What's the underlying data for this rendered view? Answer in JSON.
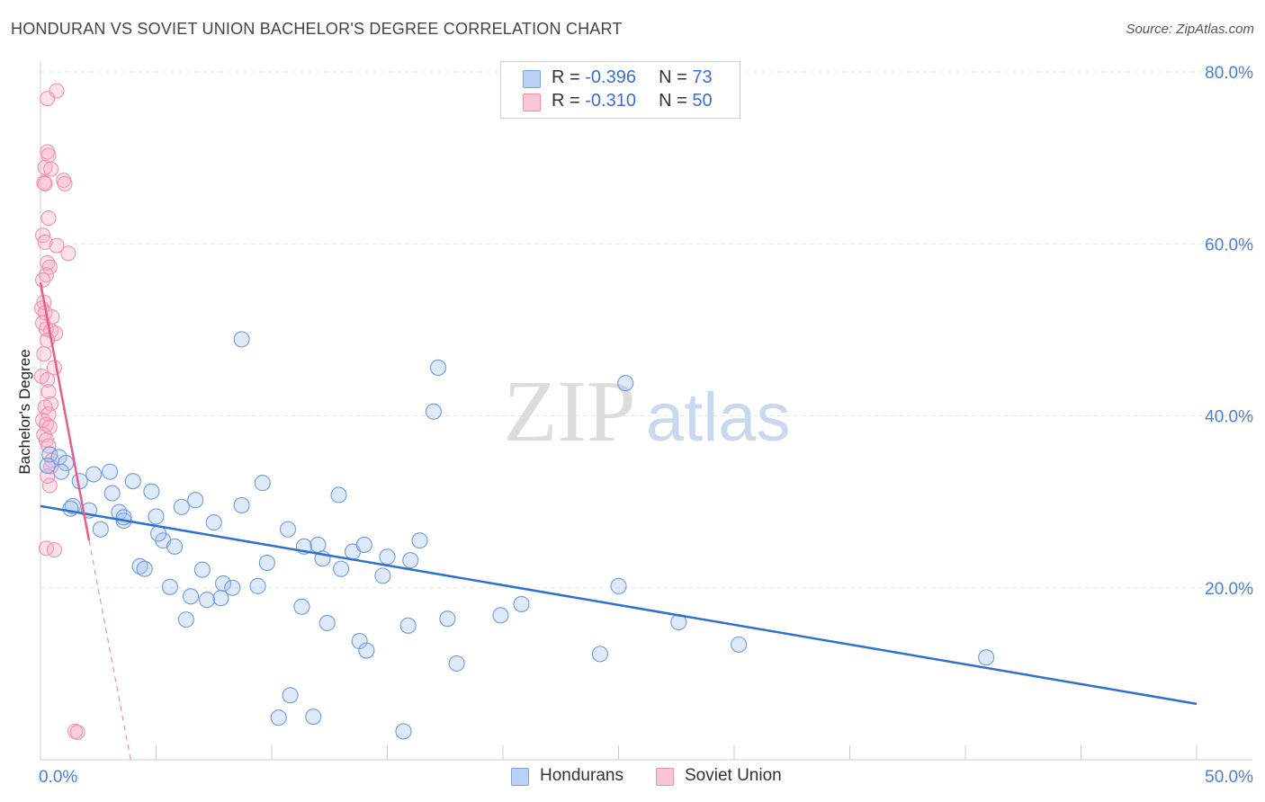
{
  "header": {
    "title": "HONDURAN VS SOVIET UNION BACHELOR'S DEGREE CORRELATION CHART",
    "source": "Source: ZipAtlas.com"
  },
  "watermark": {
    "zip": "ZIP",
    "atlas": "atlas"
  },
  "legend": {
    "rows": [
      {
        "r_label": "R = ",
        "r_value": "-0.396",
        "n_label": "N = ",
        "n_value": "73"
      },
      {
        "r_label": "R = ",
        "r_value": "-0.310",
        "n_label": "N = ",
        "n_value": "50"
      }
    ]
  },
  "chart_data": {
    "type": "scatter",
    "title": "HONDURAN VS SOVIET UNION BACHELOR'S DEGREE CORRELATION CHART",
    "xlabel": "",
    "ylabel": "Bachelor's Degree",
    "xlim": [
      0,
      50
    ],
    "ylim": [
      0,
      80
    ],
    "x_tick_labels": [
      "0.0%",
      "50.0%"
    ],
    "y_ticks": [
      20,
      40,
      60,
      80
    ],
    "y_tick_labels": [
      "20.0%",
      "40.0%",
      "60.0%",
      "80.0%"
    ],
    "grid": true,
    "legend_position": "top-center",
    "colors": {
      "hondurans": "#4a86e0",
      "soviet_union": "#ee7fa4"
    },
    "series": [
      {
        "name": "Hondurans",
        "r": -0.396,
        "n": 73,
        "trend": {
          "x": [
            0,
            50
          ],
          "y": [
            29.5,
            6.5
          ]
        },
        "points": [
          [
            0.4,
            35.5
          ],
          [
            0.8,
            35.2
          ],
          [
            1.1,
            34.5
          ],
          [
            0.9,
            33.5
          ],
          [
            1.4,
            29.5
          ],
          [
            1.7,
            32.4
          ],
          [
            2.3,
            33.2
          ],
          [
            3.0,
            33.5
          ],
          [
            3.1,
            31.0
          ],
          [
            4.0,
            32.4
          ],
          [
            4.8,
            31.2
          ],
          [
            1.3,
            29.2
          ],
          [
            2.1,
            29.0
          ],
          [
            3.4,
            28.8
          ],
          [
            3.6,
            27.8
          ],
          [
            5.0,
            28.3
          ],
          [
            6.1,
            29.4
          ],
          [
            6.7,
            30.2
          ],
          [
            2.6,
            26.8
          ],
          [
            7.5,
            27.6
          ],
          [
            8.7,
            29.6
          ],
          [
            9.6,
            32.2
          ],
          [
            10.7,
            26.8
          ],
          [
            5.3,
            25.5
          ],
          [
            5.8,
            24.8
          ],
          [
            11.4,
            24.8
          ],
          [
            12.0,
            25.0
          ],
          [
            13.5,
            24.2
          ],
          [
            14.0,
            25.0
          ],
          [
            15.0,
            23.6
          ],
          [
            16.0,
            23.2
          ],
          [
            16.4,
            25.5
          ],
          [
            4.3,
            22.5
          ],
          [
            4.5,
            22.2
          ],
          [
            7.0,
            22.1
          ],
          [
            9.8,
            22.9
          ],
          [
            12.2,
            23.4
          ],
          [
            13.0,
            22.2
          ],
          [
            14.8,
            21.4
          ],
          [
            7.9,
            20.5
          ],
          [
            8.3,
            20.0
          ],
          [
            9.4,
            20.2
          ],
          [
            5.6,
            20.1
          ],
          [
            6.5,
            19.0
          ],
          [
            7.2,
            18.6
          ],
          [
            7.8,
            18.8
          ],
          [
            11.3,
            17.8
          ],
          [
            12.4,
            15.9
          ],
          [
            17.6,
            16.4
          ],
          [
            15.9,
            15.6
          ],
          [
            6.3,
            16.3
          ],
          [
            19.9,
            16.8
          ],
          [
            20.8,
            18.1
          ],
          [
            25.0,
            20.2
          ],
          [
            27.6,
            16.0
          ],
          [
            30.2,
            13.4
          ],
          [
            13.8,
            13.8
          ],
          [
            14.1,
            12.7
          ],
          [
            24.2,
            12.3
          ],
          [
            18.0,
            11.2
          ],
          [
            10.8,
            7.5
          ],
          [
            10.3,
            4.9
          ],
          [
            11.8,
            5.0
          ],
          [
            15.7,
            3.3
          ],
          [
            8.7,
            48.9
          ],
          [
            17.2,
            45.6
          ],
          [
            17.0,
            40.5
          ],
          [
            25.3,
            43.8
          ],
          [
            40.9,
            11.9
          ],
          [
            12.9,
            30.8
          ],
          [
            3.6,
            28.2
          ],
          [
            5.1,
            26.3
          ],
          [
            0.3,
            34.2
          ]
        ]
      },
      {
        "name": "Soviet Union",
        "r": -0.31,
        "n": 50,
        "trend": {
          "x": [
            0,
            2.1
          ],
          "y": [
            55.5,
            25.5
          ]
        },
        "trend_extension": {
          "x": [
            2.1,
            3.9
          ],
          "y": [
            25.5,
            0
          ]
        },
        "points": [
          [
            0.7,
            77.8
          ],
          [
            0.3,
            76.9
          ],
          [
            0.3,
            70.7
          ],
          [
            0.35,
            70.3
          ],
          [
            0.2,
            68.9
          ],
          [
            0.45,
            68.7
          ],
          [
            0.15,
            67.1
          ],
          [
            0.2,
            67.0
          ],
          [
            1.0,
            67.4
          ],
          [
            1.05,
            67.0
          ],
          [
            0.35,
            63.0
          ],
          [
            0.1,
            61.0
          ],
          [
            0.2,
            60.2
          ],
          [
            0.7,
            59.8
          ],
          [
            1.2,
            58.9
          ],
          [
            0.3,
            57.8
          ],
          [
            0.4,
            57.3
          ],
          [
            0.25,
            56.4
          ],
          [
            0.1,
            55.8
          ],
          [
            0.15,
            53.2
          ],
          [
            0.05,
            52.5
          ],
          [
            0.2,
            52.0
          ],
          [
            0.5,
            51.5
          ],
          [
            0.1,
            50.8
          ],
          [
            0.25,
            50.1
          ],
          [
            0.45,
            49.9
          ],
          [
            0.65,
            49.6
          ],
          [
            0.3,
            48.8
          ],
          [
            0.15,
            47.2
          ],
          [
            0.6,
            45.6
          ],
          [
            0.05,
            44.6
          ],
          [
            0.3,
            44.2
          ],
          [
            0.35,
            42.8
          ],
          [
            0.45,
            41.4
          ],
          [
            0.2,
            41.0
          ],
          [
            0.35,
            40.2
          ],
          [
            0.1,
            39.5
          ],
          [
            0.25,
            39.0
          ],
          [
            0.4,
            38.7
          ],
          [
            0.15,
            37.8
          ],
          [
            0.25,
            37.2
          ],
          [
            0.35,
            36.5
          ],
          [
            0.5,
            34.8
          ],
          [
            0.45,
            34.1
          ],
          [
            0.4,
            31.9
          ],
          [
            0.25,
            24.6
          ],
          [
            0.6,
            24.4
          ],
          [
            1.5,
            3.3
          ],
          [
            1.6,
            3.2
          ],
          [
            0.3,
            33.0
          ]
        ]
      }
    ]
  },
  "bottom_legend": {
    "items": [
      {
        "label": "Hondurans"
      },
      {
        "label": "Soviet Union"
      }
    ]
  }
}
